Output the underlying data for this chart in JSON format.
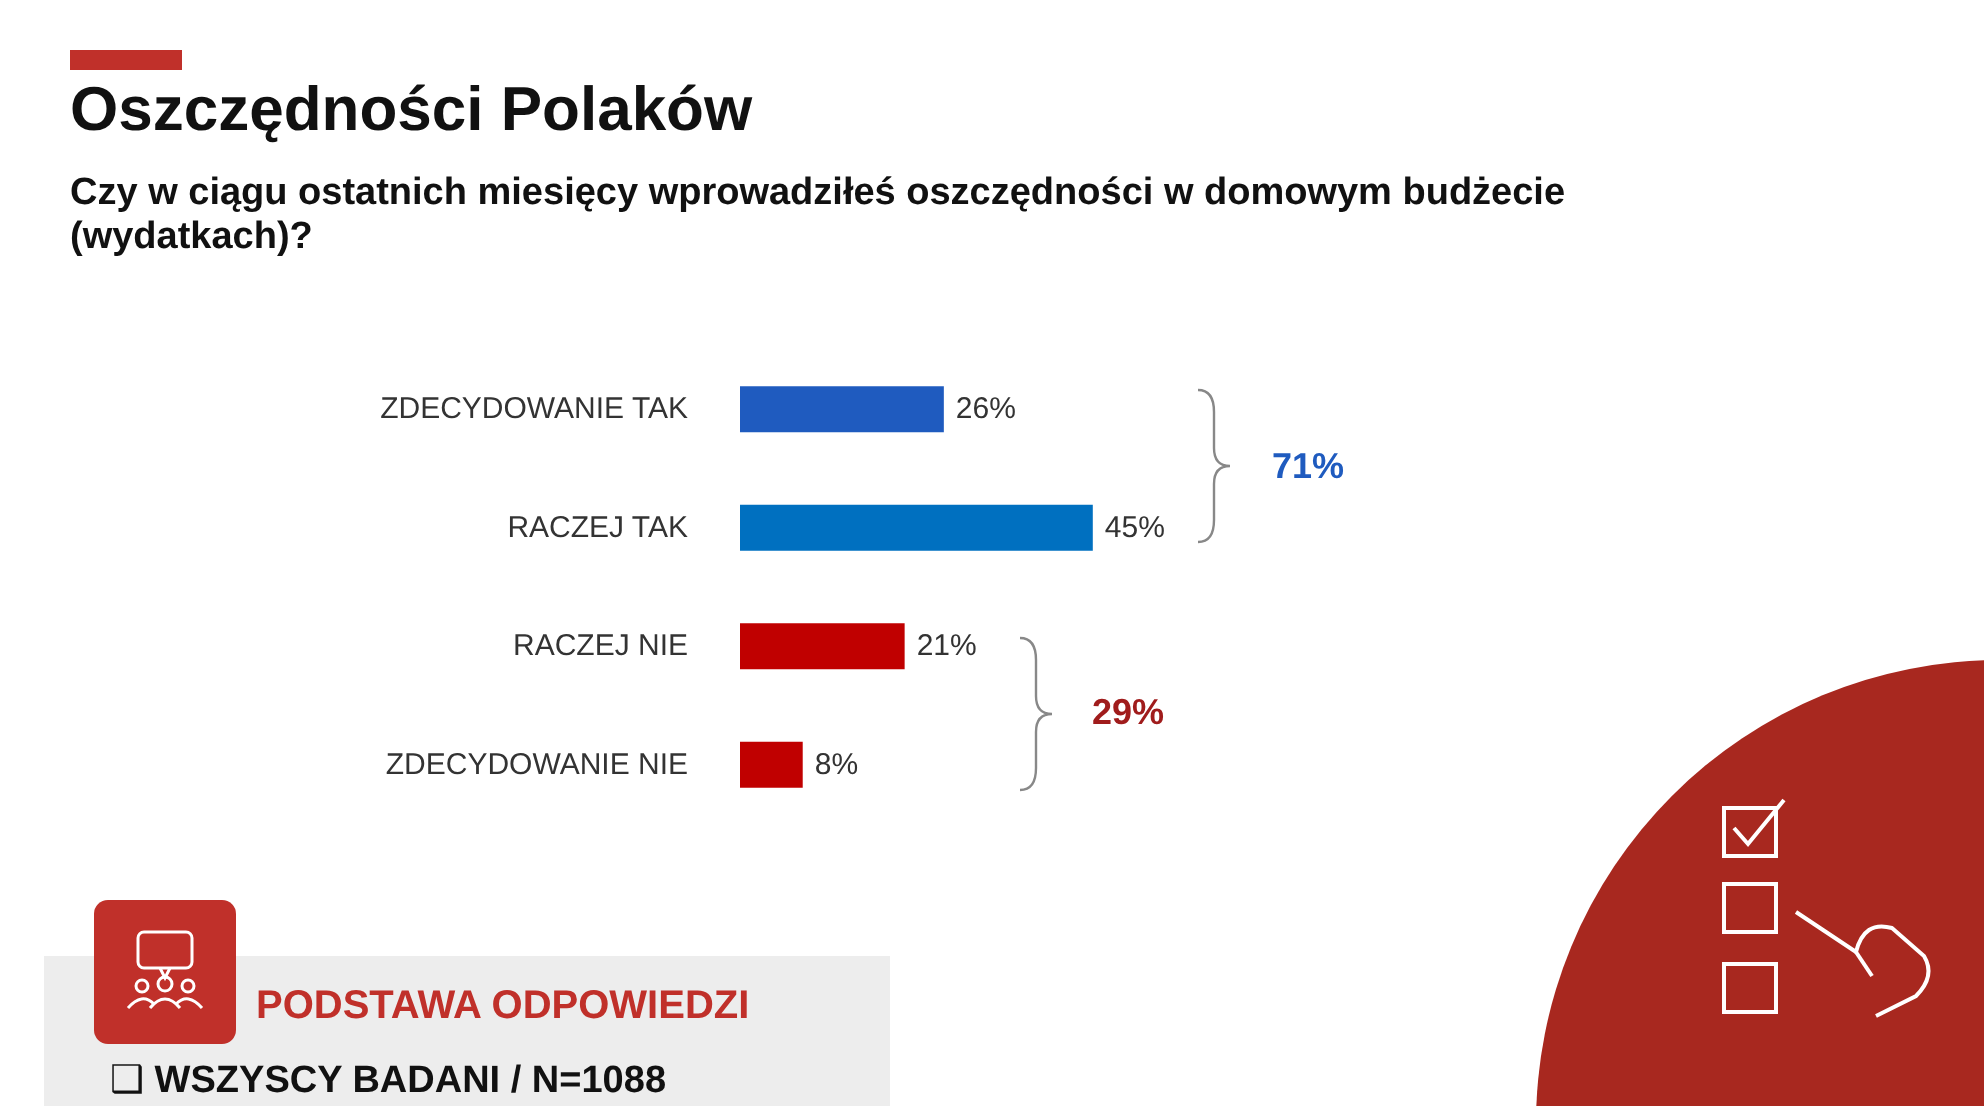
{
  "chart_data": {
    "type": "bar",
    "orientation": "horizontal",
    "title": "Oszczędności Polaków",
    "subtitle": "Czy w ciągu ostatnich miesięcy wprowadziłeś oszczędności w domowym budżecie (wydatkach)?",
    "categories": [
      "ZDECYDOWANIE TAK",
      "RACZEJ TAK",
      "RACZEJ NIE",
      "ZDECYDOWANIE NIE"
    ],
    "values": [
      26,
      45,
      21,
      8
    ],
    "colors": [
      "#1f5bbf",
      "#0070c0",
      "#c00000",
      "#c00000"
    ],
    "value_labels": [
      "26%",
      "45%",
      "21%",
      "8%"
    ],
    "annotations": [
      "71%",
      "29%",
      "PODSTAWA ODPOWIEDZI",
      "❑ WSZYSCY BADANI / N=1088"
    ],
    "tick_labels": "y"
  }
}
